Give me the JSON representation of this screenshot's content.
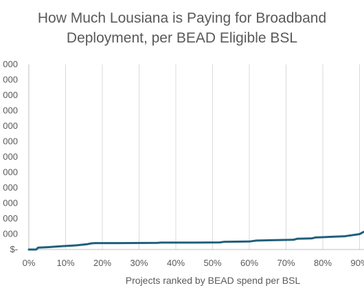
{
  "chart_data": {
    "type": "line",
    "title_lines": [
      "How Much Lousiana is Paying for Broadband",
      "Deployment, per BEAD Eligible BSL"
    ],
    "xlabel": "Projects ranked by BEAD spend per BSL",
    "ylabel": "",
    "x_tick_labels": [
      "0%",
      "10%",
      "20%",
      "30%",
      "40%",
      "50%",
      "60%",
      "70%",
      "80%",
      "90%"
    ],
    "y_tick_labels": [
      "$-",
      "000",
      "000",
      "000",
      "000",
      "000",
      "000",
      "000",
      "000",
      "000",
      "000",
      "000",
      "000"
    ],
    "x_range": [
      0,
      100
    ],
    "gridlines": "vertical",
    "line_color": "#1f5f7a",
    "series": [
      {
        "x": [
          0,
          2,
          2.5,
          5,
          8,
          9,
          13,
          16,
          17,
          18,
          25,
          35,
          36,
          45,
          52,
          53,
          60,
          62,
          65,
          72,
          73,
          77,
          78,
          80,
          83,
          86,
          87,
          90,
          91.2
        ],
        "y": [
          0.0,
          0.0,
          0.12,
          0.15,
          0.2,
          0.22,
          0.27,
          0.35,
          0.4,
          0.42,
          0.42,
          0.43,
          0.45,
          0.45,
          0.46,
          0.5,
          0.52,
          0.58,
          0.6,
          0.63,
          0.7,
          0.72,
          0.78,
          0.8,
          0.83,
          0.86,
          0.9,
          1.0,
          1.15
        ]
      }
    ]
  }
}
